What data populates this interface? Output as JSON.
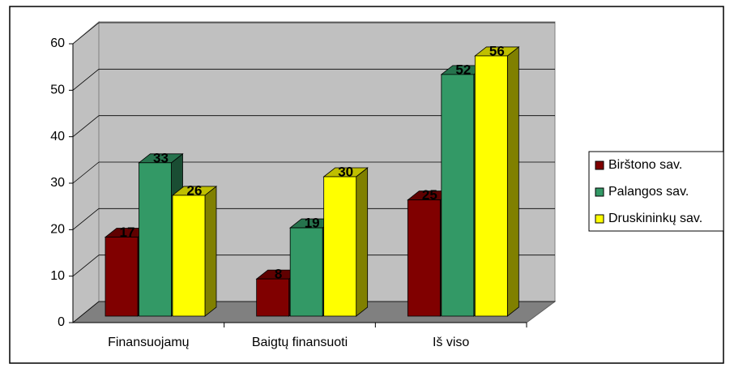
{
  "chart_data": {
    "type": "bar3d",
    "categories": [
      "Finansuojamų",
      "Baigtų finansuoti",
      "Iš viso"
    ],
    "series": [
      {
        "name": "Birštono sav.",
        "color": "#800000",
        "values": [
          17,
          8,
          25
        ]
      },
      {
        "name": "Palangos sav.",
        "color": "#339966",
        "values": [
          33,
          19,
          52
        ]
      },
      {
        "name": "Druskininkų sav.",
        "color": "#ffff00",
        "values": [
          26,
          30,
          56
        ]
      }
    ],
    "ylim": [
      0,
      60
    ],
    "yticks": [
      0,
      10,
      20,
      30,
      40,
      50,
      60
    ],
    "grid": true,
    "legend": "right"
  }
}
